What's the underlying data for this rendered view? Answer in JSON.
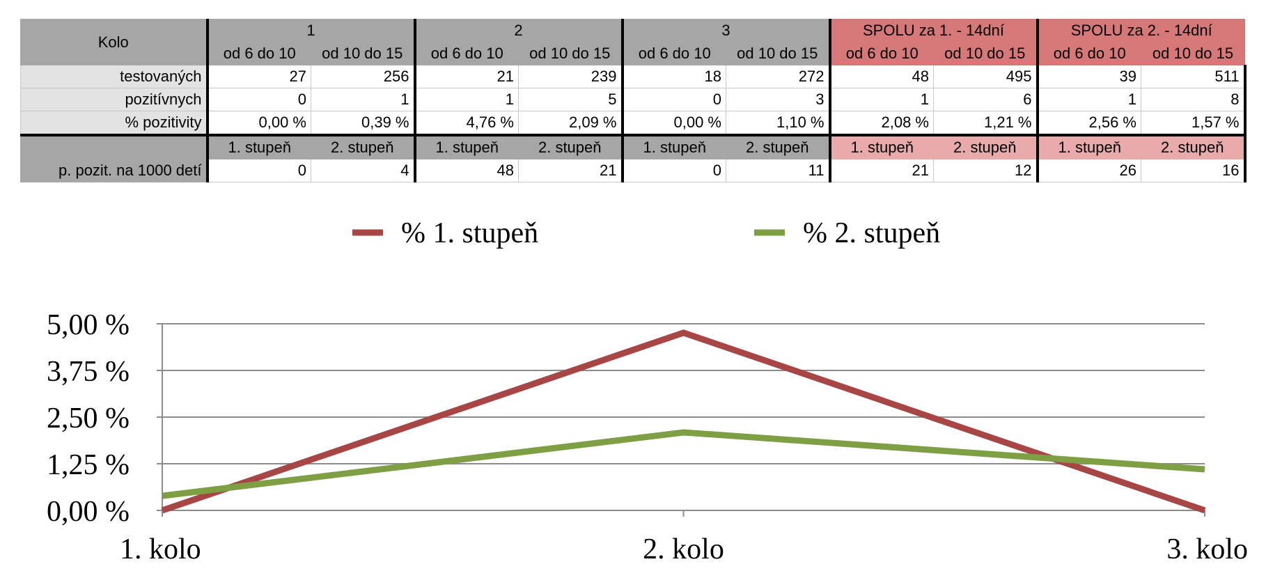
{
  "table": {
    "kolo_label": "Kolo",
    "groups": [
      "1",
      "2",
      "3",
      "SPOLU za 1. - 14dní",
      "SPOLU za 2. - 14dní"
    ],
    "subheaders": [
      "od 6 do 10",
      "od 10 do 15"
    ],
    "rows": [
      {
        "label": "testovaných",
        "values": [
          "27",
          "256",
          "21",
          "239",
          "18",
          "272",
          "48",
          "495",
          "39",
          "511"
        ]
      },
      {
        "label": "pozitívnych",
        "values": [
          "0",
          "1",
          "1",
          "5",
          "0",
          "3",
          "1",
          "6",
          "1",
          "8"
        ]
      },
      {
        "label": "% pozitivity",
        "values": [
          "0,00 %",
          "0,39 %",
          "4,76 %",
          "2,09 %",
          "0,00 %",
          "1,10 %",
          "2,08 %",
          "1,21 %",
          "2,56 %",
          "1,57 %"
        ]
      }
    ],
    "stupen_headers": [
      "1. stupeň",
      "2. stupeň"
    ],
    "per1000": {
      "label": "p. pozit. na 1000 detí",
      "values": [
        "0",
        "4",
        "48",
        "21",
        "0",
        "11",
        "21",
        "12",
        "26",
        "16"
      ]
    }
  },
  "chart_data": {
    "type": "line",
    "categories": [
      "1. kolo",
      "2. kolo",
      "3. kolo"
    ],
    "series": [
      {
        "name": "% 1. stupeň",
        "color": "#a84545",
        "values": [
          0.0,
          4.76,
          0.0
        ]
      },
      {
        "name": "% 2. stupeň",
        "color": "#7f9f45",
        "values": [
          0.39,
          2.09,
          1.1
        ]
      }
    ],
    "ylim": [
      0,
      5
    ],
    "yticks": [
      "0,00 %",
      "1,25 %",
      "2,50 %",
      "3,75 %",
      "5,00 %"
    ],
    "ytick_values": [
      0,
      1.25,
      2.5,
      3.75,
      5
    ],
    "grid": true,
    "legend_position": "top",
    "title": "",
    "xlabel": "",
    "ylabel": ""
  }
}
